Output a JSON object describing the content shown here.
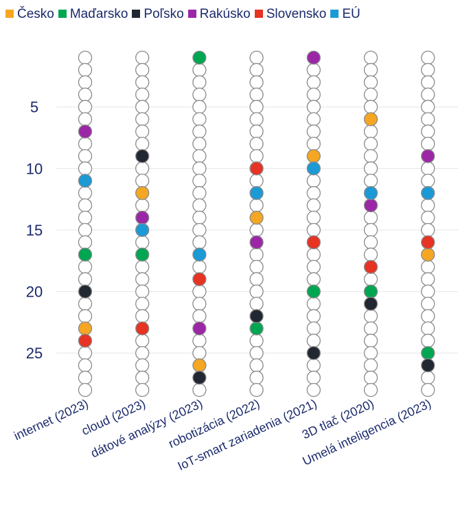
{
  "chart_data": {
    "type": "scatter",
    "title": "",
    "xlabel": "",
    "ylabel": "",
    "categories": [
      "internet (2023)",
      "cloud (2023)",
      "dátové analýzy (2023)",
      "robotizácia (2022)",
      "IoT-smart zariadenia (2021)",
      "3D tlač (2020)",
      "Umelá inteligencia (2023)"
    ],
    "ylim": [
      1,
      28
    ],
    "y_reversed": true,
    "y_ticks": [
      "5",
      "10",
      "15",
      "20",
      "25"
    ],
    "grid": true,
    "legend_position": "top",
    "rank_positions": 28,
    "series": [
      {
        "name": "Česko",
        "color": "#f5a623",
        "values": [
          23,
          12,
          26,
          14,
          9,
          6,
          17
        ]
      },
      {
        "name": "Maďarsko",
        "color": "#00a651",
        "values": [
          17,
          17,
          1,
          23,
          20,
          20,
          25
        ]
      },
      {
        "name": "Poľsko",
        "color": "#222831",
        "values": [
          20,
          9,
          27,
          22,
          25,
          21,
          26
        ]
      },
      {
        "name": "Rakúsko",
        "color": "#9b27a6",
        "values": [
          7,
          14,
          23,
          16,
          1,
          13,
          9
        ]
      },
      {
        "name": "Slovensko",
        "color": "#e63323",
        "values": [
          24,
          23,
          19,
          10,
          16,
          18,
          16
        ]
      },
      {
        "name": "EÚ",
        "color": "#1b9ad6",
        "values": [
          11,
          15,
          17,
          12,
          10,
          12,
          12
        ]
      }
    ]
  }
}
